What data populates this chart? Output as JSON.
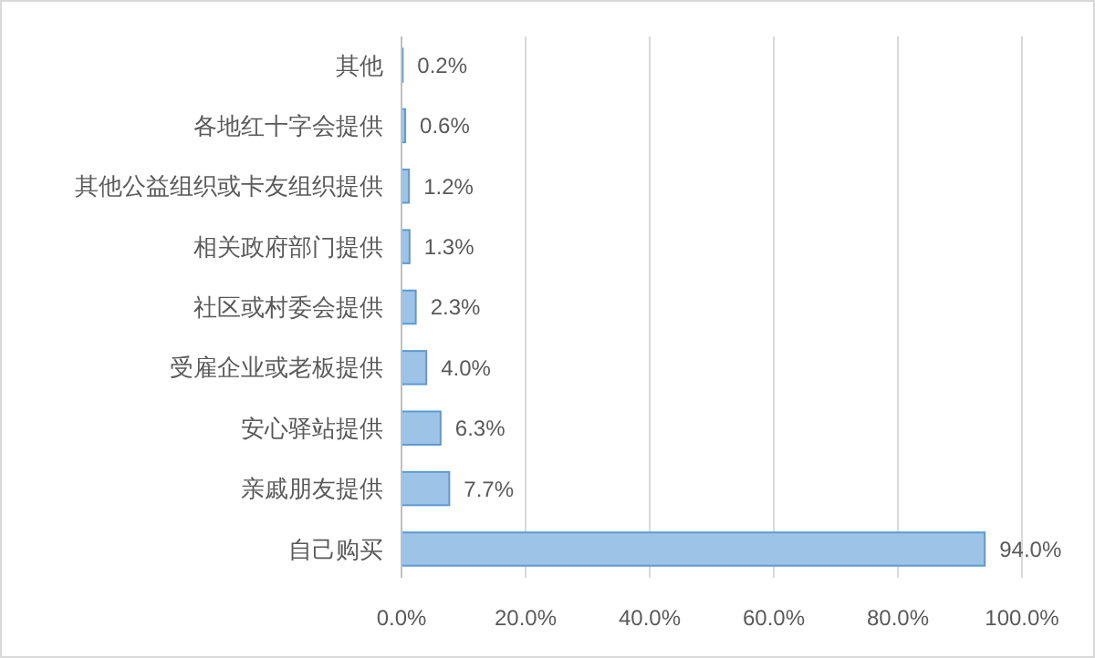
{
  "chart_data": {
    "type": "bar",
    "orientation": "horizontal",
    "categories": [
      "其他",
      "各地红十字会提供",
      "其他公益组织或卡友组织提供",
      "相关政府部门提供",
      "社区或村委会提供",
      "受雇企业或老板提供",
      "安心驿站提供",
      "亲戚朋友提供",
      "自己购买"
    ],
    "values": [
      0.2,
      0.6,
      1.2,
      1.3,
      2.3,
      4.0,
      6.3,
      7.7,
      94.0
    ],
    "value_labels": [
      "0.2%",
      "0.6%",
      "1.2%",
      "1.3%",
      "2.3%",
      "4.0%",
      "6.3%",
      "7.7%",
      "94.0%"
    ],
    "color": "#9dc3e6",
    "xlim": [
      0,
      100
    ],
    "xticks": [
      {
        "value": 0,
        "label": "0.0%"
      },
      {
        "value": 20,
        "label": "20.0%"
      },
      {
        "value": 40,
        "label": "40.0%"
      },
      {
        "value": 60,
        "label": "60.0%"
      },
      {
        "value": 80,
        "label": "80.0%"
      },
      {
        "value": 100,
        "label": "100.0%"
      }
    ],
    "grid": "x"
  }
}
